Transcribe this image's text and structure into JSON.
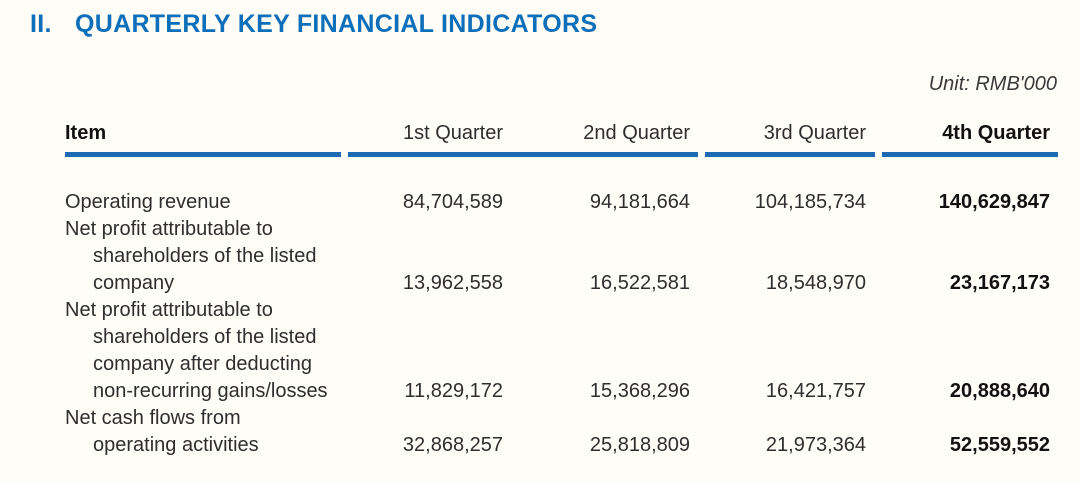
{
  "section": {
    "numeral": "II.",
    "title": "QUARTERLY KEY FINANCIAL INDICATORS"
  },
  "unit_label": "Unit: RMB'000",
  "table": {
    "columns": [
      "Item",
      "1st Quarter",
      "2nd Quarter",
      "3rd Quarter",
      "4th Quarter"
    ],
    "rows": [
      {
        "item_lines": [
          "Operating revenue"
        ],
        "values": [
          "84,704,589",
          "94,181,664",
          "104,185,734",
          "140,629,847"
        ]
      },
      {
        "item_lines": [
          "Net profit attributable to",
          "shareholders of the listed",
          "company"
        ],
        "values": [
          "13,962,558",
          "16,522,581",
          "18,548,970",
          "23,167,173"
        ]
      },
      {
        "item_lines": [
          "Net profit attributable to",
          "shareholders of the listed",
          "company after deducting",
          "non-recurring gains/losses"
        ],
        "values": [
          "11,829,172",
          "15,368,296",
          "16,421,757",
          "20,888,640"
        ]
      },
      {
        "item_lines": [
          "Net cash flows from",
          "operating activities"
        ],
        "values": [
          "32,868,257",
          "25,818,809",
          "21,973,364",
          "52,559,552"
        ]
      }
    ]
  },
  "colors": {
    "heading_blue": "#0d6fb9",
    "rule_blue": "#1c6ab1",
    "body_text": "#2e2e2e",
    "background": "#fffdf8"
  }
}
